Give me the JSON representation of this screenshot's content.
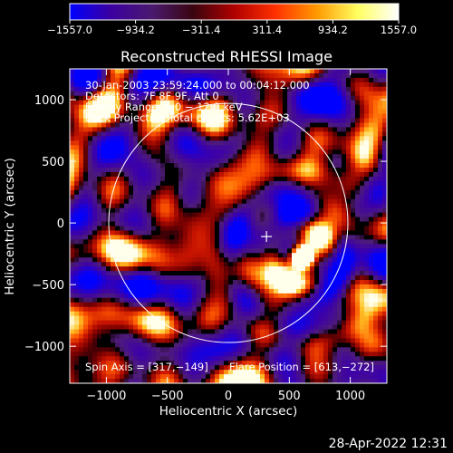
{
  "chart_data": {
    "type": "heatmap",
    "title": "Reconstructed RHESSI Image",
    "xlabel": "Heliocentric X (arcsec)",
    "ylabel": "Heliocentric Y (arcsec)",
    "xlim": [
      -1300,
      1300
    ],
    "ylim": [
      -1300,
      1250
    ],
    "x_ticks": [
      -1000,
      -500,
      0,
      500,
      1000
    ],
    "x_tick_labels": [
      "−1000",
      "−500",
      "0",
      "500",
      "1000"
    ],
    "y_ticks": [
      -1000,
      -500,
      0,
      500,
      1000
    ],
    "y_tick_labels": [
      "−1000",
      "−500",
      "0",
      "500",
      "1000"
    ],
    "solar_disk": {
      "center": [
        0,
        0
      ],
      "radius_arcsec": 975
    },
    "flare_marker": {
      "x": 313,
      "y": -110
    },
    "bright_source": {
      "x": 605,
      "y": -275,
      "value": 1557.0
    },
    "colorbar": {
      "min": -1557.0,
      "max": 1557.0,
      "ticks": [
        -1557.0,
        -934.2,
        -311.4,
        311.4,
        934.2,
        1557.0
      ],
      "tick_labels": [
        "−1557.0",
        "−934.2",
        "−311.4",
        "311.4",
        "934.2",
        "1557.0"
      ],
      "colors": [
        "#0000ff",
        "#3b00a0",
        "#4a1a6e",
        "#3a0510",
        "#b00000",
        "#ff3000",
        "#ff9800",
        "#ffff60",
        "#ffffff"
      ]
    },
    "annotations": [
      "30-Jan-2003 23:59:24.000 to 00:04:12.000",
      "Detectors: 7F 8F 9F, Att 0",
      "Energy Range: 6.0 − 12.0 keV",
      "Back Projection    Total counts: 5.62E+03"
    ],
    "spin_axis": "Spin Axis = [317,−149]",
    "flare_position": "Flare Position = [613,−272]"
  },
  "footer_date": "28-Apr-2022 12:31",
  "colors": {
    "background": "#000000",
    "foreground": "#ffffff"
  }
}
